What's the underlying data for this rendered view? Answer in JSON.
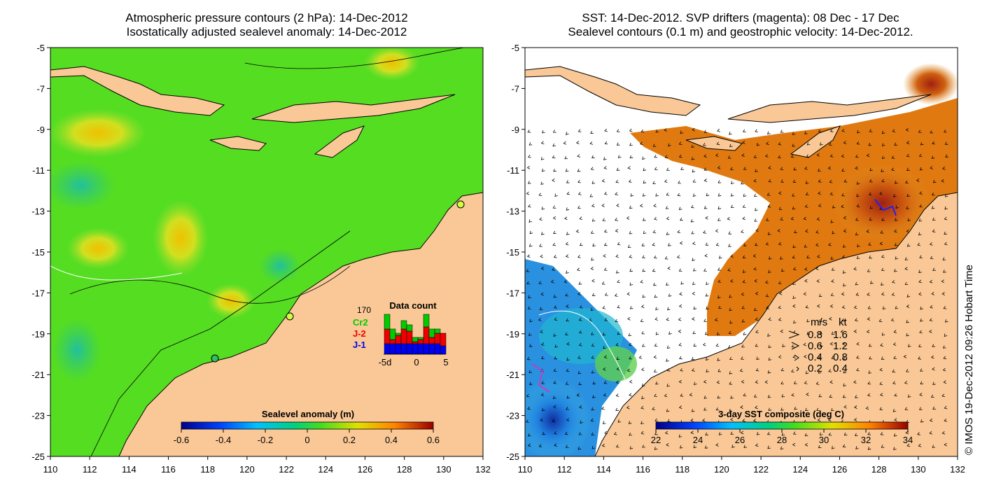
{
  "left_panel": {
    "title_line1": "Atmospheric pressure contours (2 hPa): 14-Dec-2012",
    "title_line2": "Isostatically adjusted sealevel anomaly: 14-Dec-2012",
    "lat_ticks": [
      "-5",
      "-7",
      "-9",
      "-11",
      "-13",
      "-15",
      "-17",
      "-19",
      "-21",
      "-23",
      "-25"
    ],
    "lon_ticks": [
      "110",
      "112",
      "114",
      "116",
      "118",
      "120",
      "122",
      "124",
      "126",
      "128",
      "130",
      "132"
    ],
    "colorbar": {
      "label": "Sealevel anomaly (m)",
      "ticks": [
        "-0.6",
        "-0.4",
        "-0.2",
        "0",
        "0.2",
        "0.4",
        "0.6"
      ],
      "range": [
        -0.6,
        0.6
      ]
    },
    "data_count": {
      "title": "Data count",
      "max": "170",
      "series": [
        {
          "name": "Cr2",
          "color": "#00cc00"
        },
        {
          "name": "J-2",
          "color": "#ee0000"
        },
        {
          "name": "J-1",
          "color": "#0000ee"
        }
      ],
      "x_ticks": [
        "-5d",
        "0",
        "5"
      ],
      "bars": [
        {
          "j1": 0.25,
          "j2": 0.35,
          "cr2": 0.35
        },
        {
          "j1": 0.25,
          "j2": 0.1,
          "cr2": 0.25
        },
        {
          "j1": 0.25,
          "j2": 0.2,
          "cr2": 0.05
        },
        {
          "j1": 0.25,
          "j2": 0.35,
          "cr2": 0.2
        },
        {
          "j1": 0.25,
          "j2": 0.3,
          "cr2": 0.15
        },
        {
          "j1": 0.25,
          "j2": 0.05,
          "cr2": 0.1
        },
        {
          "j1": 0.25,
          "j2": 0.1,
          "cr2": 0.05
        },
        {
          "j1": 0.25,
          "j2": 0.4,
          "cr2": 0.3
        },
        {
          "j1": 0.25,
          "j2": 0.15,
          "cr2": 0.2
        },
        {
          "j1": 0.25,
          "j2": 0.25,
          "cr2": 0.1
        },
        {
          "j1": 0.2,
          "j2": 0.3,
          "cr2": 0.0
        }
      ]
    }
  },
  "right_panel": {
    "title_line1": "SST: 14-Dec-2012. SVP drifters (magenta): 08 Dec - 17 Dec",
    "title_line2": "Sealevel contours (0.1 m) and geostrophic velocity: 14-Dec-2012.",
    "lat_ticks": [
      "-5",
      "-7",
      "-9",
      "-11",
      "-13",
      "-15",
      "-17",
      "-19",
      "-21",
      "-23",
      "-25"
    ],
    "lon_ticks": [
      "110",
      "112",
      "114",
      "116",
      "118",
      "120",
      "122",
      "124",
      "126",
      "128",
      "130",
      "132"
    ],
    "colorbar": {
      "label": "3-day SST composite (deg C)",
      "ticks": [
        "22",
        "24",
        "26",
        "28",
        "30",
        "32",
        "34"
      ],
      "range": [
        22,
        34
      ]
    },
    "velocity_legend": {
      "header_ms": "m/s",
      "header_kt": "kt",
      "rows": [
        {
          "ms": "0.8",
          "kt": "1.6"
        },
        {
          "ms": "0.6",
          "kt": "1.2"
        },
        {
          "ms": "0.4",
          "kt": "0.8"
        },
        {
          "ms": "0.2",
          "kt": "0.4"
        }
      ]
    }
  },
  "credit": "© IMOS 19-Dec-2012 09:26 Hobart Time",
  "colors": {
    "land": "#f9c896",
    "sla_background": "#55dd22",
    "sst_background": "#ffffff",
    "sst_warm": "#e07a10"
  }
}
